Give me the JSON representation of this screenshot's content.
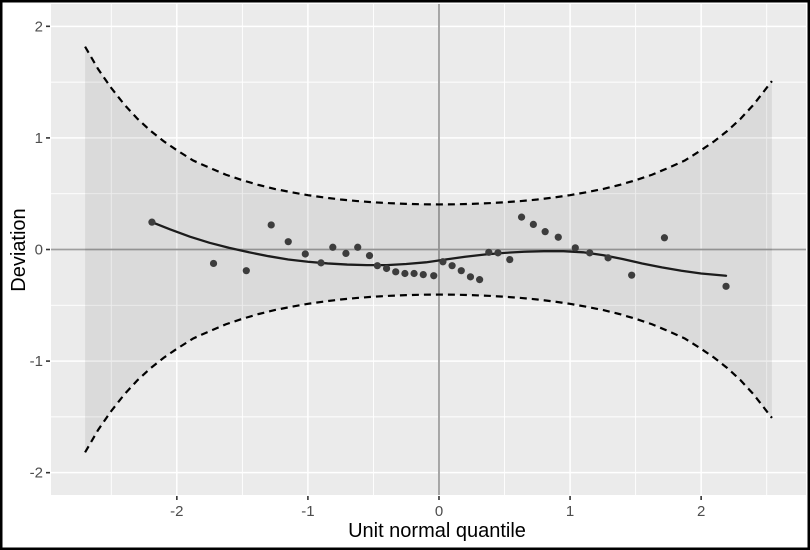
{
  "chart_data": {
    "type": "scatter",
    "subtype": "worm-plot-detrended-qq",
    "xlabel": "Unit normal quantile",
    "ylabel": "Deviation",
    "xlim": [
      -2.96,
      2.8
    ],
    "ylim": [
      -2.2,
      2.2
    ],
    "x_major_ticks": [
      -2,
      -1,
      0,
      1,
      2
    ],
    "x_tick_labels": [
      "-2",
      "-1",
      "0",
      "1",
      "2"
    ],
    "y_major_ticks": [
      2,
      1,
      0,
      -1,
      -2
    ],
    "y_tick_labels": [
      "2",
      "1",
      "0",
      "-1",
      "-2"
    ],
    "x_minor_ticks": [
      -2.5,
      -1.5,
      -0.5,
      0.5,
      1.5,
      2.5
    ],
    "y_minor_ticks": [
      -1.5,
      -0.5,
      0.5,
      1.5
    ],
    "grid": "white major+minor gridlines on gray panel",
    "legend": "none",
    "reference_lines": {
      "horizontal_at": 0,
      "vertical_at": 0
    },
    "points": [
      [
        -2.19,
        0.245
      ],
      [
        -1.72,
        -0.125
      ],
      [
        -1.47,
        -0.19
      ],
      [
        -1.28,
        0.22
      ],
      [
        -1.15,
        0.07
      ],
      [
        -1.02,
        -0.04
      ],
      [
        -0.9,
        -0.12
      ],
      [
        -0.81,
        0.02
      ],
      [
        -0.71,
        -0.035
      ],
      [
        -0.62,
        0.02
      ],
      [
        -0.53,
        -0.055
      ],
      [
        -0.47,
        -0.145
      ],
      [
        -0.4,
        -0.17
      ],
      [
        -0.33,
        -0.2
      ],
      [
        -0.26,
        -0.215
      ],
      [
        -0.19,
        -0.215
      ],
      [
        -0.12,
        -0.225
      ],
      [
        -0.04,
        -0.235
      ],
      [
        0.03,
        -0.11
      ],
      [
        0.1,
        -0.145
      ],
      [
        0.17,
        -0.19
      ],
      [
        0.24,
        -0.245
      ],
      [
        0.31,
        -0.27
      ],
      [
        0.38,
        -0.025
      ],
      [
        0.45,
        -0.03
      ],
      [
        0.54,
        -0.09
      ],
      [
        0.63,
        0.29
      ],
      [
        0.72,
        0.225
      ],
      [
        0.81,
        0.16
      ],
      [
        0.91,
        0.11
      ],
      [
        1.04,
        0.015
      ],
      [
        1.15,
        -0.03
      ],
      [
        1.29,
        -0.075
      ],
      [
        1.47,
        -0.23
      ],
      [
        1.72,
        0.105
      ],
      [
        2.19,
        -0.33
      ]
    ],
    "smooth_line": [
      [
        -2.19,
        0.245
      ],
      [
        -2.05,
        0.18
      ],
      [
        -1.9,
        0.115
      ],
      [
        -1.75,
        0.06
      ],
      [
        -1.6,
        0.015
      ],
      [
        -1.45,
        -0.025
      ],
      [
        -1.3,
        -0.06
      ],
      [
        -1.15,
        -0.09
      ],
      [
        -1.0,
        -0.11
      ],
      [
        -0.85,
        -0.125
      ],
      [
        -0.7,
        -0.135
      ],
      [
        -0.55,
        -0.14
      ],
      [
        -0.4,
        -0.14
      ],
      [
        -0.25,
        -0.13
      ],
      [
        -0.1,
        -0.115
      ],
      [
        0.05,
        -0.09
      ],
      [
        0.2,
        -0.065
      ],
      [
        0.35,
        -0.045
      ],
      [
        0.5,
        -0.03
      ],
      [
        0.65,
        -0.02
      ],
      [
        0.8,
        -0.015
      ],
      [
        0.95,
        -0.015
      ],
      [
        1.1,
        -0.025
      ],
      [
        1.25,
        -0.05
      ],
      [
        1.4,
        -0.085
      ],
      [
        1.55,
        -0.125
      ],
      [
        1.7,
        -0.16
      ],
      [
        1.85,
        -0.19
      ],
      [
        2.0,
        -0.215
      ],
      [
        2.19,
        -0.235
      ]
    ],
    "envelope": {
      "style": "dashed black curves with shaded band between",
      "q": [
        -2.7,
        -2.6,
        -2.5,
        -2.4,
        -2.3,
        -2.2,
        -2.1,
        -2.0,
        -1.875,
        -1.75,
        -1.625,
        -1.5,
        -1.375,
        -1.25,
        -1.125,
        -1.0,
        -0.875,
        -0.75,
        -0.625,
        -0.5,
        -0.375,
        -0.25,
        -0.125,
        0,
        0.125,
        0.25,
        0.375,
        0.5,
        0.625,
        0.75,
        0.875,
        1.0,
        1.125,
        1.25,
        1.375,
        1.5,
        1.625,
        1.75,
        1.875,
        2.0,
        2.1,
        2.2,
        2.3,
        2.4,
        2.54
      ],
      "upper": [
        1.818,
        1.616,
        1.447,
        1.298,
        1.171,
        1.063,
        0.97,
        0.89,
        0.797,
        0.732,
        0.67,
        0.621,
        0.578,
        0.542,
        0.513,
        0.487,
        0.466,
        0.448,
        0.434,
        0.423,
        0.415,
        0.409,
        0.405,
        0.404,
        0.405,
        0.409,
        0.415,
        0.423,
        0.434,
        0.448,
        0.466,
        0.487,
        0.513,
        0.542,
        0.578,
        0.621,
        0.67,
        0.732,
        0.797,
        0.89,
        0.97,
        1.063,
        1.171,
        1.298,
        1.509
      ],
      "lower": [
        -1.818,
        -1.616,
        -1.447,
        -1.298,
        -1.171,
        -1.063,
        -0.97,
        -0.89,
        -0.797,
        -0.732,
        -0.67,
        -0.621,
        -0.578,
        -0.542,
        -0.513,
        -0.487,
        -0.466,
        -0.448,
        -0.434,
        -0.423,
        -0.415,
        -0.409,
        -0.405,
        -0.404,
        -0.405,
        -0.409,
        -0.415,
        -0.423,
        -0.434,
        -0.448,
        -0.466,
        -0.487,
        -0.513,
        -0.542,
        -0.578,
        -0.621,
        -0.67,
        -0.732,
        -0.797,
        -0.89,
        -0.97,
        -1.063,
        -1.171,
        -1.298,
        -1.509
      ]
    },
    "colors": {
      "figure_bg": "#FFFFFF",
      "figure_border": "#000000",
      "panel_bg": "#EBEBEB",
      "band_fill": "rgba(0,0,0,0.07)",
      "grid_line": "#FFFFFF",
      "reference_line": "#9E9E9E",
      "envelope_line": "#000000",
      "smooth_line": "#1C1C1C",
      "point": "#3D3D3D",
      "tick_mark": "#333333",
      "tick_label": "#4D4D4D",
      "axis_title": "#000000"
    }
  }
}
